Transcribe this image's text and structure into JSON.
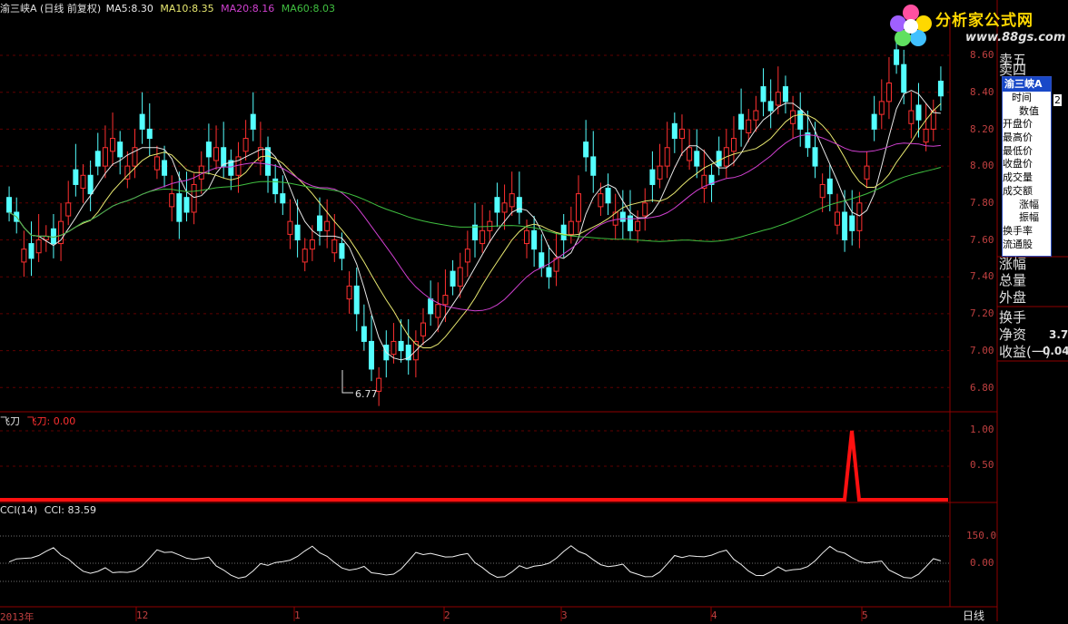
{
  "header": {
    "stock_name": "渝三峡A",
    "period_info": "(日线 前复权)",
    "ma": [
      {
        "label": "MA5:",
        "value": "8.30",
        "color": "#e8e8e8"
      },
      {
        "label": "MA10:",
        "value": "8.35",
        "color": "#e8e870"
      },
      {
        "label": "MA20:",
        "value": "8.16",
        "color": "#d040d0"
      },
      {
        "label": "MA60:",
        "value": "8.03",
        "color": "#40c040"
      }
    ]
  },
  "logo": {
    "text": "分析家公式网",
    "url": "www.88gs.com"
  },
  "price_axis": [
    "8.60",
    "8.40",
    "8.20",
    "8.00",
    "7.80",
    "7.60",
    "7.40",
    "7.20",
    "7.00",
    "6.80"
  ],
  "low_marker": "6.77",
  "feidao": {
    "name": "飞刀",
    "line_label": "飞刀: 0.00",
    "axis": [
      "1.00",
      "0.50"
    ]
  },
  "cci": {
    "name": "CCI(14)",
    "line_label": "CCI: 83.59",
    "axis": [
      "150.0",
      "0.00"
    ]
  },
  "date_axis": [
    "2013年",
    "12",
    "1",
    "2",
    "3",
    "4",
    "5"
  ],
  "period_button": "日线",
  "right_panel": {
    "labels_top": [
      "卖五",
      "卖四"
    ],
    "labels_bottom": [
      "涨幅",
      "总量",
      "外盘",
      "换手",
      "净资",
      "收益(一)"
    ],
    "values": [
      "3.7",
      "0.04"
    ],
    "popup_title": "渝三峡A",
    "popup_items": [
      "时间",
      "数值",
      "开盘价",
      "最高价",
      "最低价",
      "收盘价",
      "成交量",
      "成交额",
      "涨幅",
      "振幅",
      "换手率",
      "流通股"
    ],
    "popup_value": "2"
  },
  "colors": {
    "up": "#ff3030",
    "down": "#54ffff",
    "grid": "#7a0000",
    "axis_text": "#c04040"
  }
}
